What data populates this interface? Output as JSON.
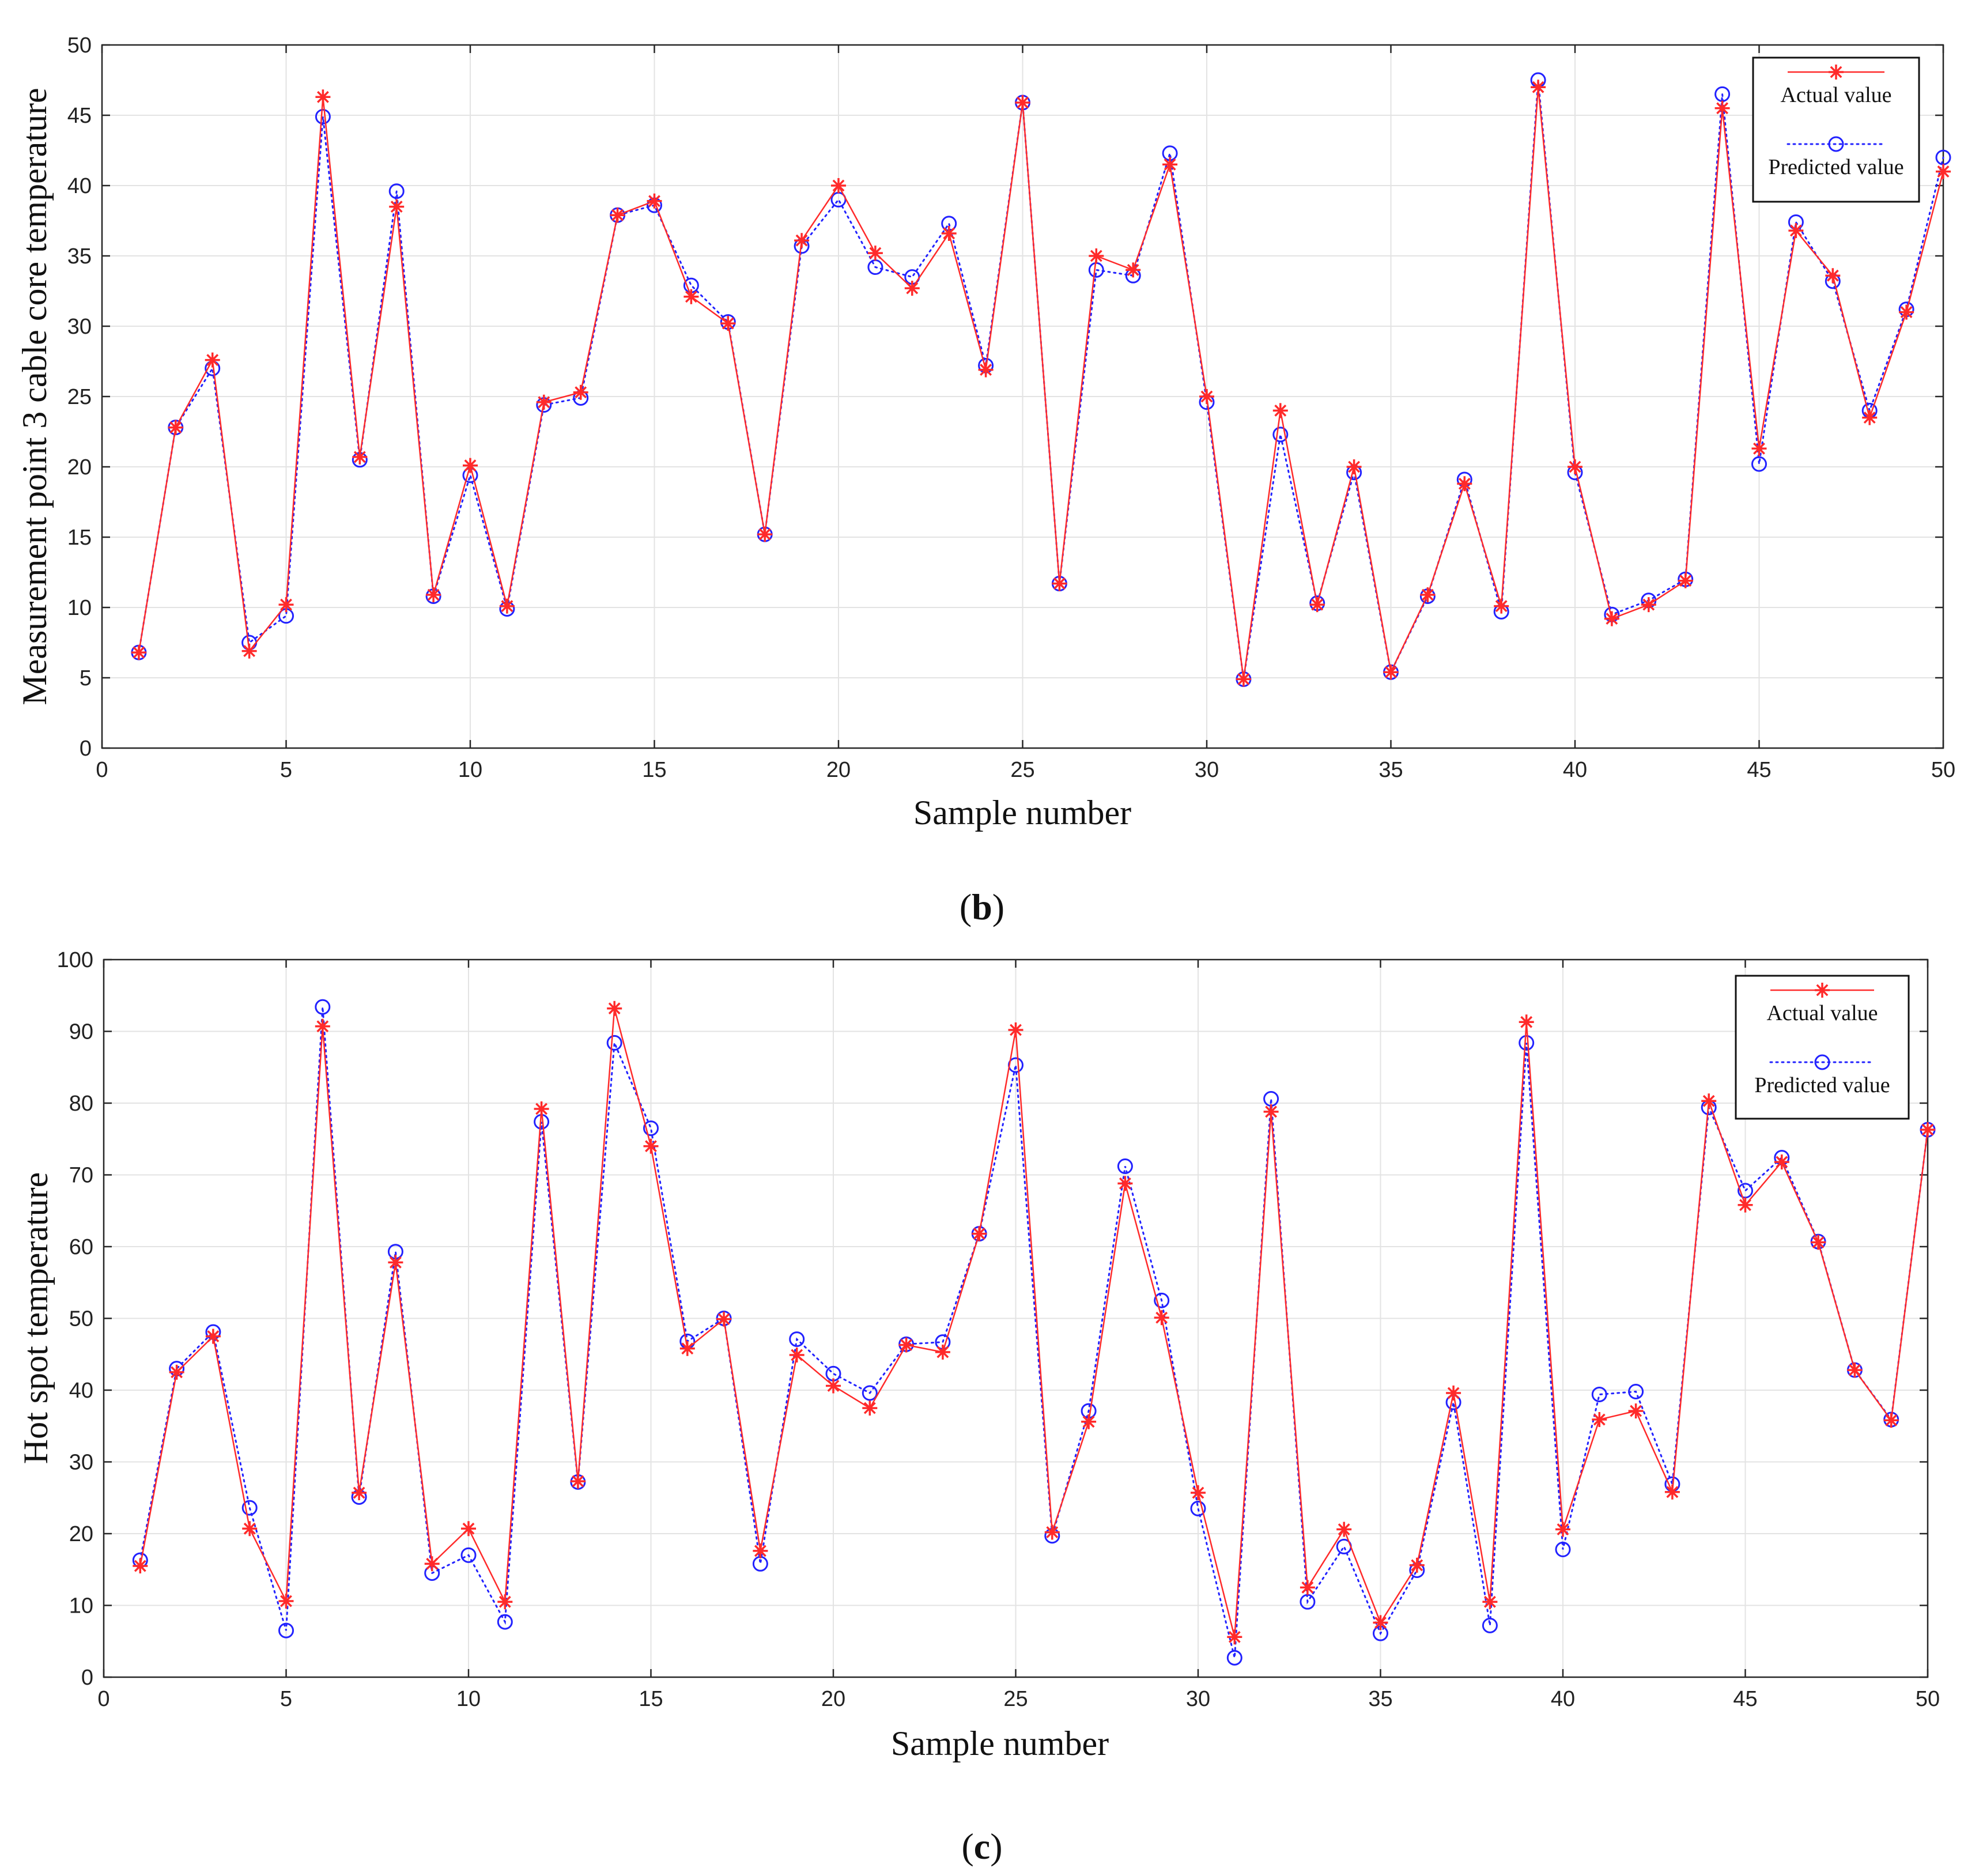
{
  "chart_data": [
    {
      "type": "line",
      "panel": "b",
      "caption": {
        "open": "(",
        "letter": "b",
        "close": ")"
      },
      "title": "",
      "xlabel": "Sample number",
      "ylabel": "Measurement point 3 cable core temperature",
      "xlim": [
        0,
        50
      ],
      "ylim": [
        0,
        50
      ],
      "xticks": [
        0,
        5,
        10,
        15,
        20,
        25,
        30,
        35,
        40,
        45,
        50
      ],
      "yticks": [
        0,
        5,
        10,
        15,
        20,
        25,
        30,
        35,
        40,
        45,
        50
      ],
      "grid": true,
      "legend_position": "top-right",
      "x": [
        1,
        2,
        3,
        4,
        5,
        6,
        7,
        8,
        9,
        10,
        11,
        12,
        13,
        14,
        15,
        16,
        17,
        18,
        19,
        20,
        21,
        22,
        23,
        24,
        25,
        26,
        27,
        28,
        29,
        30,
        31,
        32,
        33,
        34,
        35,
        36,
        37,
        38,
        39,
        40,
        41,
        42,
        43,
        44,
        45,
        46,
        47,
        48,
        49,
        50
      ],
      "series": [
        {
          "name": "Actual value",
          "color": "#ff2a2a",
          "marker": "*",
          "line": "solid",
          "values": [
            6.8,
            22.8,
            27.6,
            6.9,
            10.2,
            46.3,
            20.7,
            38.5,
            10.9,
            20.1,
            10.1,
            24.6,
            25.3,
            37.9,
            38.9,
            32.1,
            30.2,
            15.2,
            36.1,
            40.0,
            35.2,
            32.7,
            36.6,
            26.9,
            45.9,
            11.7,
            35.0,
            34.0,
            41.5,
            25.0,
            4.9,
            24.0,
            10.2,
            20.0,
            5.4,
            10.9,
            18.8,
            10.1,
            47.0,
            20.0,
            9.2,
            10.2,
            11.9,
            45.5,
            21.3,
            36.8,
            33.6,
            23.5,
            31.0,
            41.0
          ]
        },
        {
          "name": "Predicted value",
          "color": "#2222ff",
          "marker": "o",
          "line": "dotted",
          "values": [
            6.8,
            22.8,
            27.0,
            7.5,
            9.4,
            44.9,
            20.5,
            39.6,
            10.8,
            19.4,
            9.9,
            24.4,
            24.9,
            37.9,
            38.6,
            32.9,
            30.3,
            15.2,
            35.7,
            39.0,
            34.2,
            33.5,
            37.3,
            27.2,
            45.9,
            11.7,
            34.0,
            33.6,
            42.3,
            24.6,
            4.9,
            22.3,
            10.3,
            19.6,
            5.4,
            10.8,
            19.1,
            9.7,
            47.5,
            19.6,
            9.5,
            10.5,
            12.0,
            46.5,
            20.2,
            37.4,
            33.2,
            24.0,
            31.2,
            42.0
          ]
        }
      ]
    },
    {
      "type": "line",
      "panel": "c",
      "caption": {
        "open": "(",
        "letter": "c",
        "close": ")"
      },
      "title": "",
      "xlabel": "Sample number",
      "ylabel": "Hot spot temperature",
      "xlim": [
        0,
        50
      ],
      "ylim": [
        0,
        100
      ],
      "xticks": [
        0,
        5,
        10,
        15,
        20,
        25,
        30,
        35,
        40,
        45,
        50
      ],
      "yticks": [
        0,
        10,
        20,
        30,
        40,
        50,
        60,
        70,
        80,
        90,
        100
      ],
      "grid": true,
      "legend_position": "top-right",
      "x": [
        1,
        2,
        3,
        4,
        5,
        6,
        7,
        8,
        9,
        10,
        11,
        12,
        13,
        14,
        15,
        16,
        17,
        18,
        19,
        20,
        21,
        22,
        23,
        24,
        25,
        26,
        27,
        28,
        29,
        30,
        31,
        32,
        33,
        34,
        35,
        36,
        37,
        38,
        39,
        40,
        41,
        42,
        43,
        44,
        45,
        46,
        47,
        48,
        49,
        50
      ],
      "series": [
        {
          "name": "Actual value",
          "color": "#ff2a2a",
          "marker": "*",
          "line": "solid",
          "values": [
            15.5,
            42.5,
            47.5,
            20.7,
            10.6,
            90.7,
            25.7,
            57.8,
            15.8,
            20.7,
            10.5,
            79.2,
            27.3,
            93.2,
            74.0,
            45.8,
            49.9,
            17.6,
            44.9,
            40.6,
            37.5,
            46.3,
            45.3,
            61.8,
            90.2,
            20.2,
            35.6,
            68.8,
            50.1,
            25.7,
            5.6,
            78.8,
            12.5,
            20.6,
            7.6,
            15.6,
            39.6,
            10.5,
            91.3,
            20.6,
            35.9,
            37.1,
            25.8,
            80.3,
            65.8,
            71.8,
            60.6,
            42.8,
            35.8,
            76.3
          ]
        },
        {
          "name": "Predicted value",
          "color": "#2222ff",
          "marker": "o",
          "line": "dotted",
          "values": [
            16.3,
            43.0,
            48.1,
            23.6,
            6.5,
            93.4,
            25.1,
            59.3,
            14.5,
            17.0,
            7.7,
            77.4,
            27.2,
            88.4,
            76.5,
            46.8,
            50.0,
            15.8,
            47.1,
            42.3,
            39.6,
            46.4,
            46.7,
            61.8,
            85.3,
            19.7,
            37.1,
            71.2,
            52.5,
            23.5,
            2.7,
            80.6,
            10.5,
            18.2,
            6.1,
            14.9,
            38.3,
            7.2,
            88.4,
            17.8,
            39.4,
            39.8,
            26.9,
            79.4,
            67.8,
            72.4,
            60.7,
            42.8,
            35.9,
            76.3
          ]
        }
      ]
    }
  ]
}
